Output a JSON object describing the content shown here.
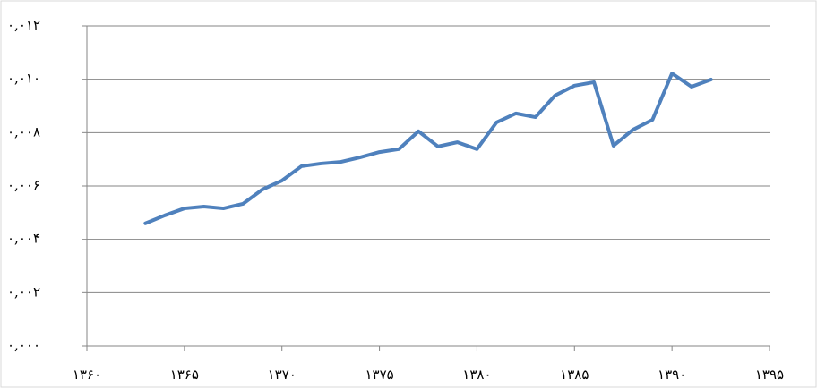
{
  "chart_data": {
    "type": "line",
    "x": [
      1363,
      1364,
      1365,
      1366,
      1367,
      1368,
      1369,
      1370,
      1371,
      1372,
      1373,
      1374,
      1375,
      1376,
      1377,
      1378,
      1379,
      1380,
      1381,
      1382,
      1383,
      1384,
      1385,
      1386,
      1387,
      1388,
      1389,
      1390,
      1391,
      1392
    ],
    "values": [
      0.0046,
      0.0049,
      0.00516,
      0.00523,
      0.00516,
      0.00533,
      0.00587,
      0.0062,
      0.00674,
      0.00684,
      0.0069,
      0.00707,
      0.00727,
      0.00738,
      0.00805,
      0.00748,
      0.00764,
      0.00738,
      0.00838,
      0.00872,
      0.00858,
      0.00939,
      0.00976,
      0.00989,
      0.00751,
      0.00811,
      0.00848,
      0.01022,
      0.00972,
      0.00999
    ],
    "color": "#4f81bd",
    "xlim": [
      1360,
      1395
    ],
    "xticks": [
      {
        "value": 1360,
        "label": "۱۳۶۰"
      },
      {
        "value": 1365,
        "label": "۱۳۶۵"
      },
      {
        "value": 1370,
        "label": "۱۳۷۰"
      },
      {
        "value": 1375,
        "label": "۱۳۷۵"
      },
      {
        "value": 1380,
        "label": "۱۳۸۰"
      },
      {
        "value": 1385,
        "label": "۱۳۸۵"
      },
      {
        "value": 1390,
        "label": "۱۳۹۰"
      },
      {
        "value": 1395,
        "label": "۱۳۹۵"
      }
    ],
    "ylim": [
      0,
      0.012
    ],
    "yticks": [
      {
        "value": 0,
        "label": "۰,۰۰۰"
      },
      {
        "value": 0.002,
        "label": "۰,۰۰۲"
      },
      {
        "value": 0.004,
        "label": "۰,۰۰۴"
      },
      {
        "value": 0.006,
        "label": "۰,۰۰۶"
      },
      {
        "value": 0.008,
        "label": "۰,۰۰۸"
      },
      {
        "value": 0.01,
        "label": "۰,۰۱۰"
      },
      {
        "value": 0.012,
        "label": "۰,۰۱۲"
      }
    ],
    "grid": true
  }
}
